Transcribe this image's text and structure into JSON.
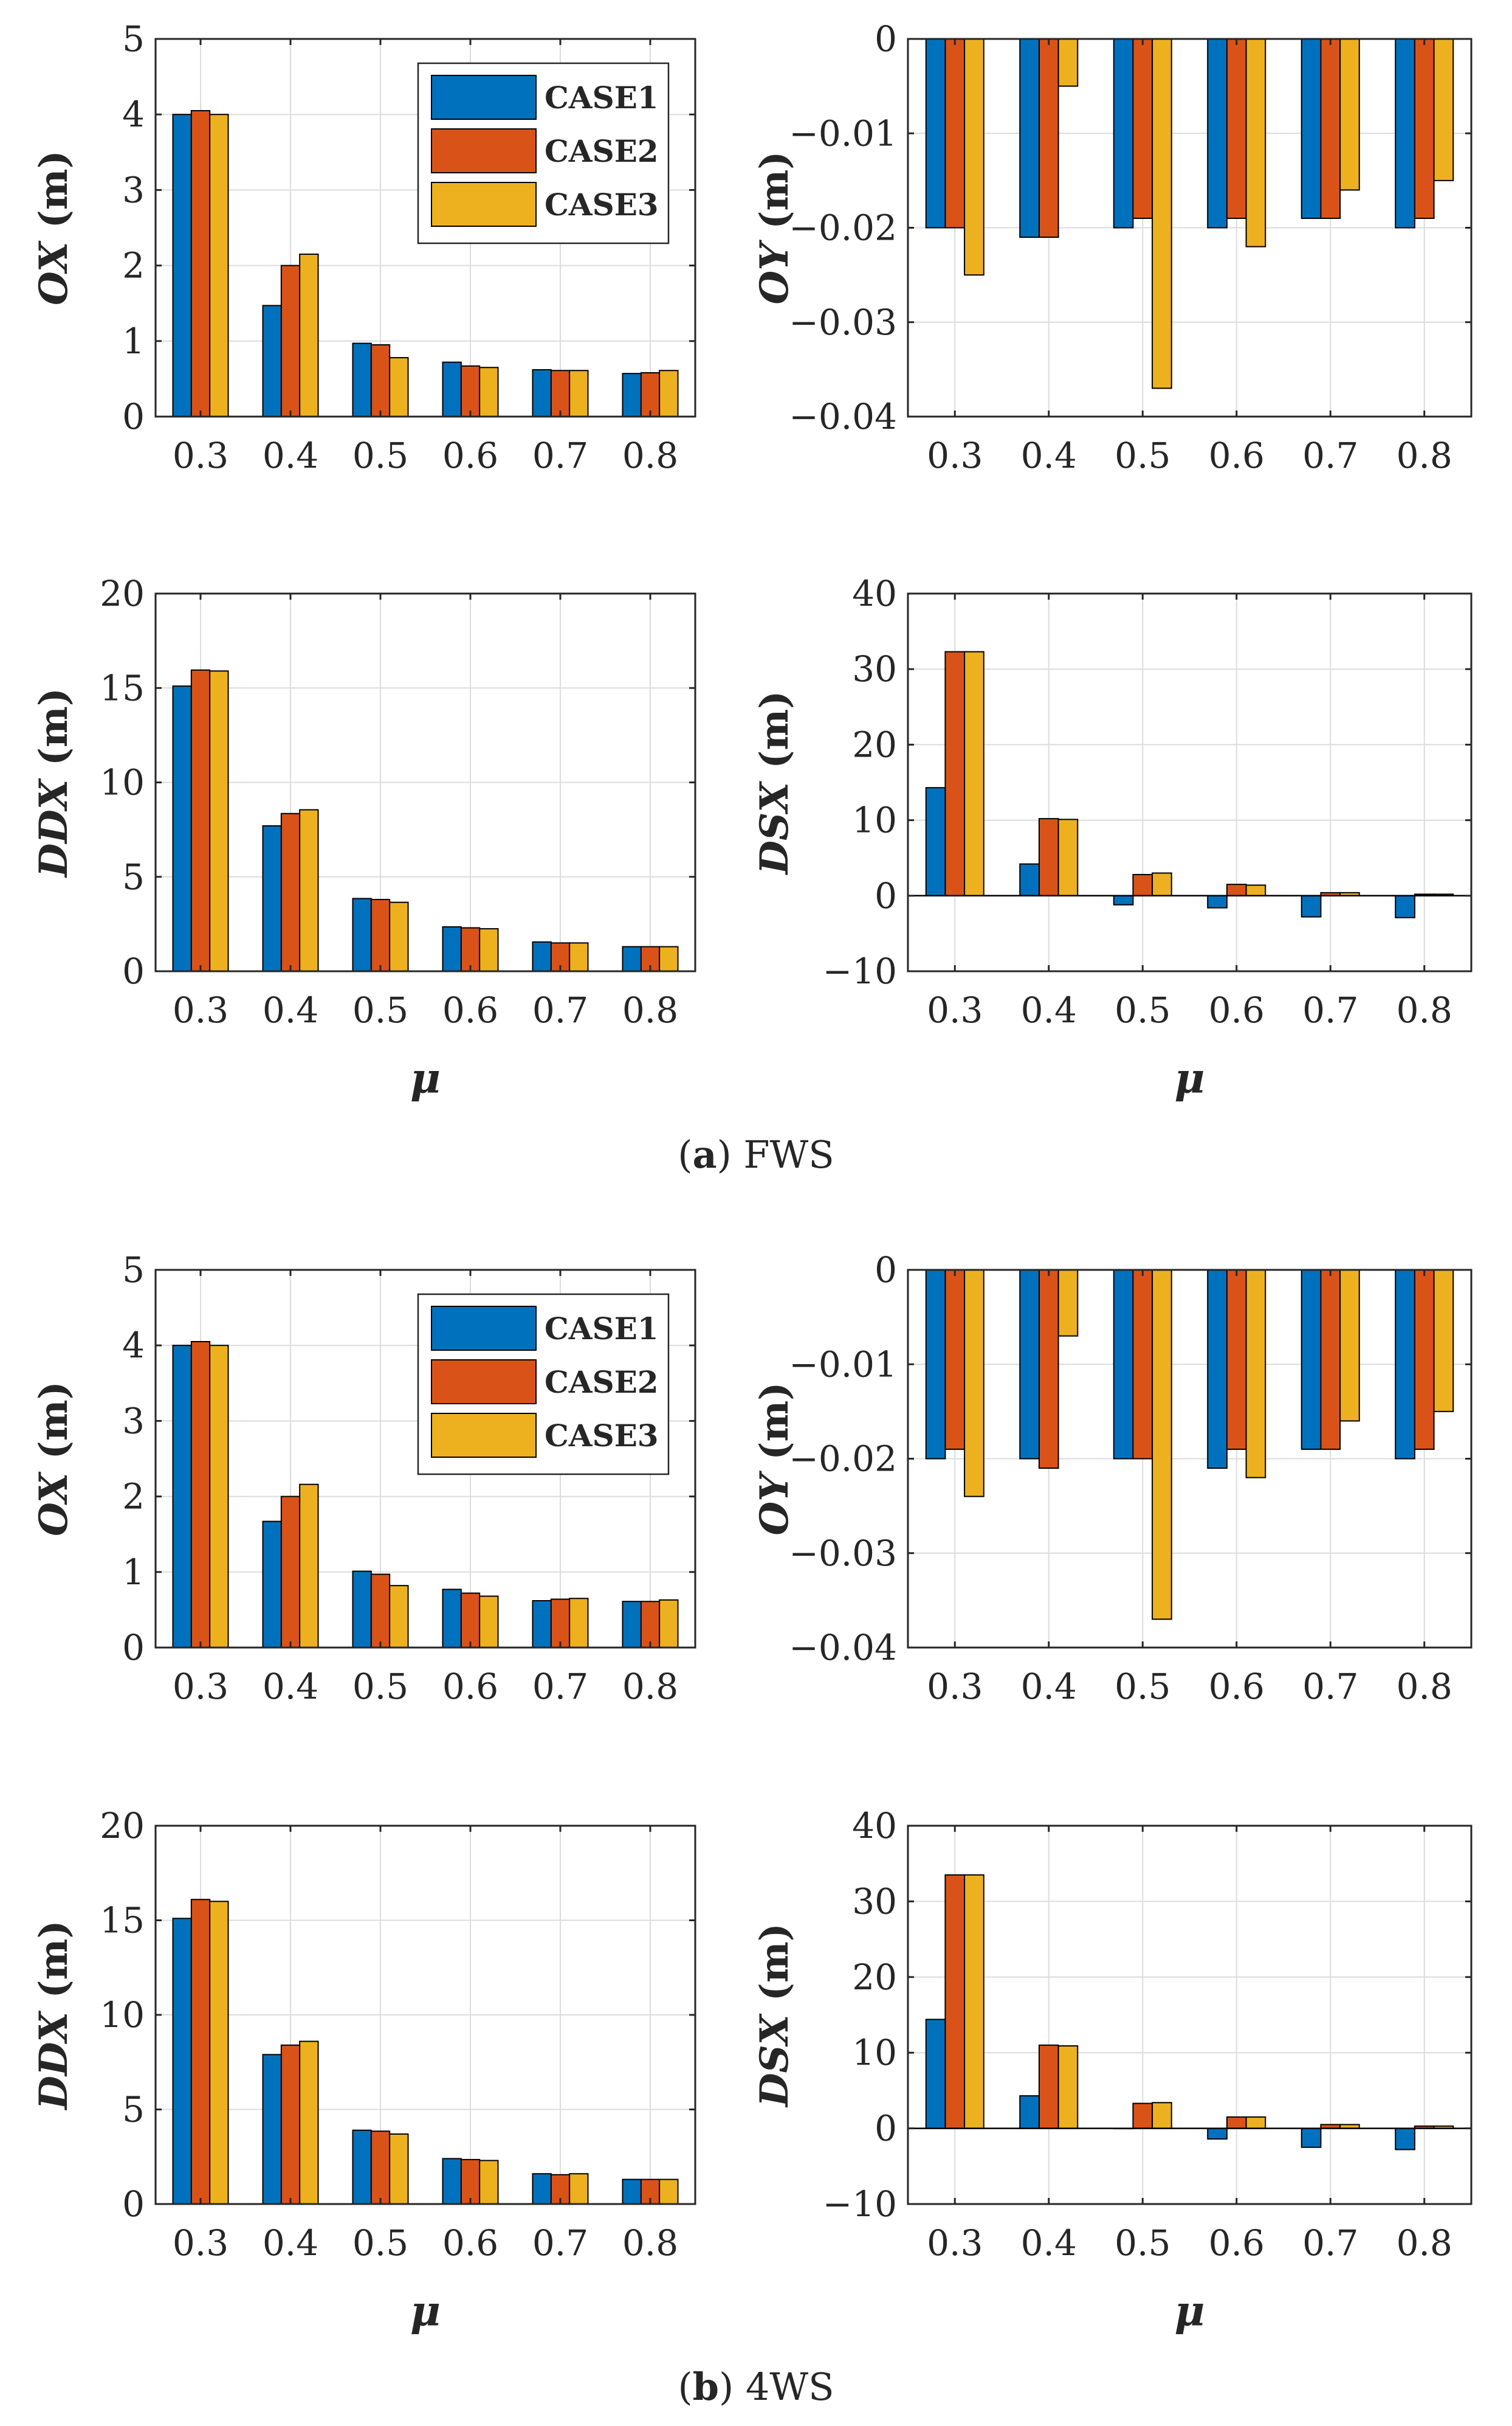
{
  "legend_entries": [
    "CASE1",
    "CASE2",
    "CASE3"
  ],
  "colors": {
    "CASE1": "#0072BD",
    "CASE2": "#D95319",
    "CASE3": "#EDB120",
    "grid": "#dcdcdc",
    "axis": "#262626"
  },
  "captions": [
    {
      "label": "a",
      "text": "FWS"
    },
    {
      "label": "b",
      "text": "4WS"
    }
  ],
  "chart_data": [
    {
      "id": "a-ox",
      "group": "a",
      "type": "bar",
      "ylabel_var": "OX",
      "ylabel_unit": " (m)",
      "xlabel": "",
      "categories": [
        "0.3",
        "0.4",
        "0.5",
        "0.6",
        "0.7",
        "0.8"
      ],
      "ylim": [
        0,
        5
      ],
      "yticks": [
        "0",
        "1",
        "2",
        "3",
        "4",
        "5"
      ],
      "legend": "top-right",
      "series": [
        {
          "name": "CASE1",
          "values": [
            4.0,
            1.47,
            0.97,
            0.72,
            0.62,
            0.57
          ]
        },
        {
          "name": "CASE2",
          "values": [
            4.05,
            2.0,
            0.95,
            0.67,
            0.61,
            0.58
          ]
        },
        {
          "name": "CASE3",
          "values": [
            4.0,
            2.15,
            0.78,
            0.65,
            0.61,
            0.61
          ]
        }
      ]
    },
    {
      "id": "a-oy",
      "group": "a",
      "type": "bar",
      "ylabel_var": "OY",
      "ylabel_unit": " (m)",
      "xlabel": "",
      "categories": [
        "0.3",
        "0.4",
        "0.5",
        "0.6",
        "0.7",
        "0.8"
      ],
      "ylim": [
        -0.04,
        0
      ],
      "yticks": [
        "−0.04",
        "−0.03",
        "−0.02",
        "−0.01",
        "0"
      ],
      "series": [
        {
          "name": "CASE1",
          "values": [
            -0.02,
            -0.021,
            -0.02,
            -0.02,
            -0.019,
            -0.02
          ]
        },
        {
          "name": "CASE2",
          "values": [
            -0.02,
            -0.021,
            -0.019,
            -0.019,
            -0.019,
            -0.019
          ]
        },
        {
          "name": "CASE3",
          "values": [
            -0.025,
            -0.005,
            -0.037,
            -0.022,
            -0.016,
            -0.015
          ]
        }
      ]
    },
    {
      "id": "a-ddx",
      "group": "a",
      "type": "bar",
      "ylabel_var": "DDX",
      "ylabel_unit": " (m)",
      "xlabel": "μ",
      "categories": [
        "0.3",
        "0.4",
        "0.5",
        "0.6",
        "0.7",
        "0.8"
      ],
      "ylim": [
        0,
        20
      ],
      "yticks": [
        "0",
        "5",
        "10",
        "15",
        "20"
      ],
      "series": [
        {
          "name": "CASE1",
          "values": [
            15.1,
            7.7,
            3.85,
            2.35,
            1.55,
            1.3
          ]
        },
        {
          "name": "CASE2",
          "values": [
            15.95,
            8.35,
            3.8,
            2.3,
            1.5,
            1.3
          ]
        },
        {
          "name": "CASE3",
          "values": [
            15.9,
            8.55,
            3.65,
            2.25,
            1.5,
            1.3
          ]
        }
      ]
    },
    {
      "id": "a-dsx",
      "group": "a",
      "type": "bar",
      "ylabel_var": "DSX",
      "ylabel_unit": " (m)",
      "xlabel": "μ",
      "categories": [
        "0.3",
        "0.4",
        "0.5",
        "0.6",
        "0.7",
        "0.8"
      ],
      "ylim": [
        -10,
        40
      ],
      "yticks": [
        "−10",
        "0",
        "10",
        "20",
        "30",
        "40"
      ],
      "series": [
        {
          "name": "CASE1",
          "values": [
            14.3,
            4.2,
            -1.2,
            -1.6,
            -2.8,
            -2.9
          ]
        },
        {
          "name": "CASE2",
          "values": [
            32.3,
            10.2,
            2.8,
            1.5,
            0.4,
            0.2
          ]
        },
        {
          "name": "CASE3",
          "values": [
            32.3,
            10.1,
            3.0,
            1.4,
            0.4,
            0.2
          ]
        }
      ]
    },
    {
      "id": "b-ox",
      "group": "b",
      "type": "bar",
      "ylabel_var": "OX",
      "ylabel_unit": " (m)",
      "xlabel": "",
      "categories": [
        "0.3",
        "0.4",
        "0.5",
        "0.6",
        "0.7",
        "0.8"
      ],
      "ylim": [
        0,
        5
      ],
      "yticks": [
        "0",
        "1",
        "2",
        "3",
        "4",
        "5"
      ],
      "legend": "top-right",
      "series": [
        {
          "name": "CASE1",
          "values": [
            4.0,
            1.67,
            1.01,
            0.77,
            0.62,
            0.61
          ]
        },
        {
          "name": "CASE2",
          "values": [
            4.05,
            2.0,
            0.97,
            0.72,
            0.64,
            0.61
          ]
        },
        {
          "name": "CASE3",
          "values": [
            4.0,
            2.16,
            0.82,
            0.68,
            0.65,
            0.63
          ]
        }
      ]
    },
    {
      "id": "b-oy",
      "group": "b",
      "type": "bar",
      "ylabel_var": "OY",
      "ylabel_unit": " (m)",
      "xlabel": "",
      "categories": [
        "0.3",
        "0.4",
        "0.5",
        "0.6",
        "0.7",
        "0.8"
      ],
      "ylim": [
        -0.04,
        0
      ],
      "yticks": [
        "−0.04",
        "−0.03",
        "−0.02",
        "−0.01",
        "0"
      ],
      "series": [
        {
          "name": "CASE1",
          "values": [
            -0.02,
            -0.02,
            -0.02,
            -0.021,
            -0.019,
            -0.02
          ]
        },
        {
          "name": "CASE2",
          "values": [
            -0.019,
            -0.021,
            -0.02,
            -0.019,
            -0.019,
            -0.019
          ]
        },
        {
          "name": "CASE3",
          "values": [
            -0.024,
            -0.007,
            -0.037,
            -0.022,
            -0.016,
            -0.015
          ]
        }
      ]
    },
    {
      "id": "b-ddx",
      "group": "b",
      "type": "bar",
      "ylabel_var": "DDX",
      "ylabel_unit": " (m)",
      "xlabel": "μ",
      "categories": [
        "0.3",
        "0.4",
        "0.5",
        "0.6",
        "0.7",
        "0.8"
      ],
      "ylim": [
        0,
        20
      ],
      "yticks": [
        "0",
        "5",
        "10",
        "15",
        "20"
      ],
      "series": [
        {
          "name": "CASE1",
          "values": [
            15.1,
            7.9,
            3.9,
            2.4,
            1.6,
            1.3
          ]
        },
        {
          "name": "CASE2",
          "values": [
            16.1,
            8.4,
            3.85,
            2.35,
            1.55,
            1.3
          ]
        },
        {
          "name": "CASE3",
          "values": [
            16.0,
            8.6,
            3.7,
            2.3,
            1.6,
            1.3
          ]
        }
      ]
    },
    {
      "id": "b-dsx",
      "group": "b",
      "type": "bar",
      "ylabel_var": "DSX",
      "ylabel_unit": " (m)",
      "xlabel": "μ",
      "categories": [
        "0.3",
        "0.4",
        "0.5",
        "0.6",
        "0.7",
        "0.8"
      ],
      "ylim": [
        -10,
        40
      ],
      "yticks": [
        "−10",
        "0",
        "10",
        "20",
        "30",
        "40"
      ],
      "series": [
        {
          "name": "CASE1",
          "values": [
            14.4,
            4.3,
            0.0,
            -1.4,
            -2.5,
            -2.8
          ]
        },
        {
          "name": "CASE2",
          "values": [
            33.5,
            11.0,
            3.3,
            1.5,
            0.5,
            0.3
          ]
        },
        {
          "name": "CASE3",
          "values": [
            33.5,
            10.9,
            3.4,
            1.5,
            0.5,
            0.3
          ]
        }
      ]
    }
  ]
}
